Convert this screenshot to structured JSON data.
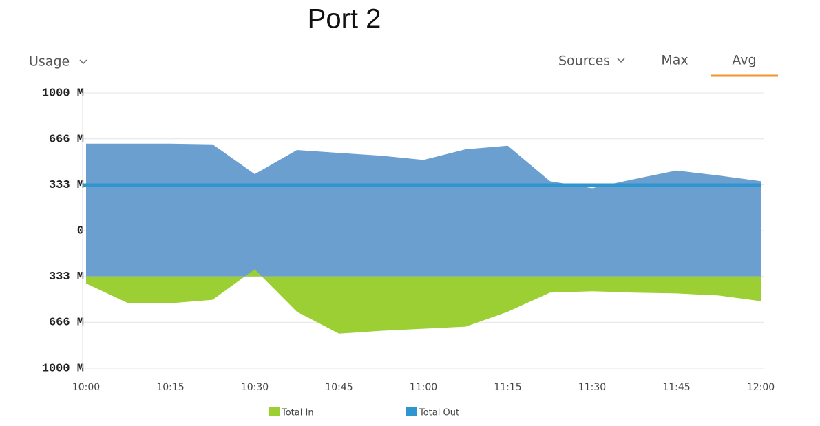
{
  "chart_data": {
    "type": "area",
    "title": "Port 2",
    "controls": {
      "metric": "Usage",
      "sources": "Sources",
      "tabs": [
        "Max",
        "Avg"
      ],
      "selected_tab": 1,
      "tab_color": "#f0962e"
    },
    "categories": [
      "10:00",
      null,
      "10:15",
      null,
      "10:30",
      null,
      "10:45",
      null,
      "11:00",
      null,
      "11:15",
      null,
      "11:30",
      null,
      "11:45",
      null,
      "12:00"
    ],
    "series": [
      {
        "name": "Total In",
        "color": "#9ccf33",
        "values": [
          -385,
          -528,
          -528,
          -503,
          -282,
          -590,
          -749,
          -728,
          -713,
          -698,
          -590,
          -451,
          -441,
          -451,
          -457,
          -472,
          -513
        ]
      },
      {
        "name": "Total Out",
        "color": "#6a9fd0",
        "values": [
          631,
          631,
          631,
          626,
          410,
          585,
          564,
          544,
          513,
          590,
          616,
          359,
          308,
          374,
          436,
          400,
          359
        ]
      }
    ],
    "reference_value": 330,
    "reference_color": "#2f95cf",
    "legend_colors": [
      "#9ccf33",
      "#2f95cf"
    ],
    "ylim": [
      -1000,
      1000
    ],
    "yticks": [
      {
        "value": 1000,
        "label": "1000 M"
      },
      {
        "value": 666,
        "label": "666 M"
      },
      {
        "value": 333,
        "label": "333 M"
      },
      0,
      {
        "value": -333,
        "label": "333 M"
      },
      {
        "value": -666,
        "label": "666 M"
      },
      {
        "value": -1000,
        "label": "1000 M"
      }
    ],
    "grid": true
  }
}
